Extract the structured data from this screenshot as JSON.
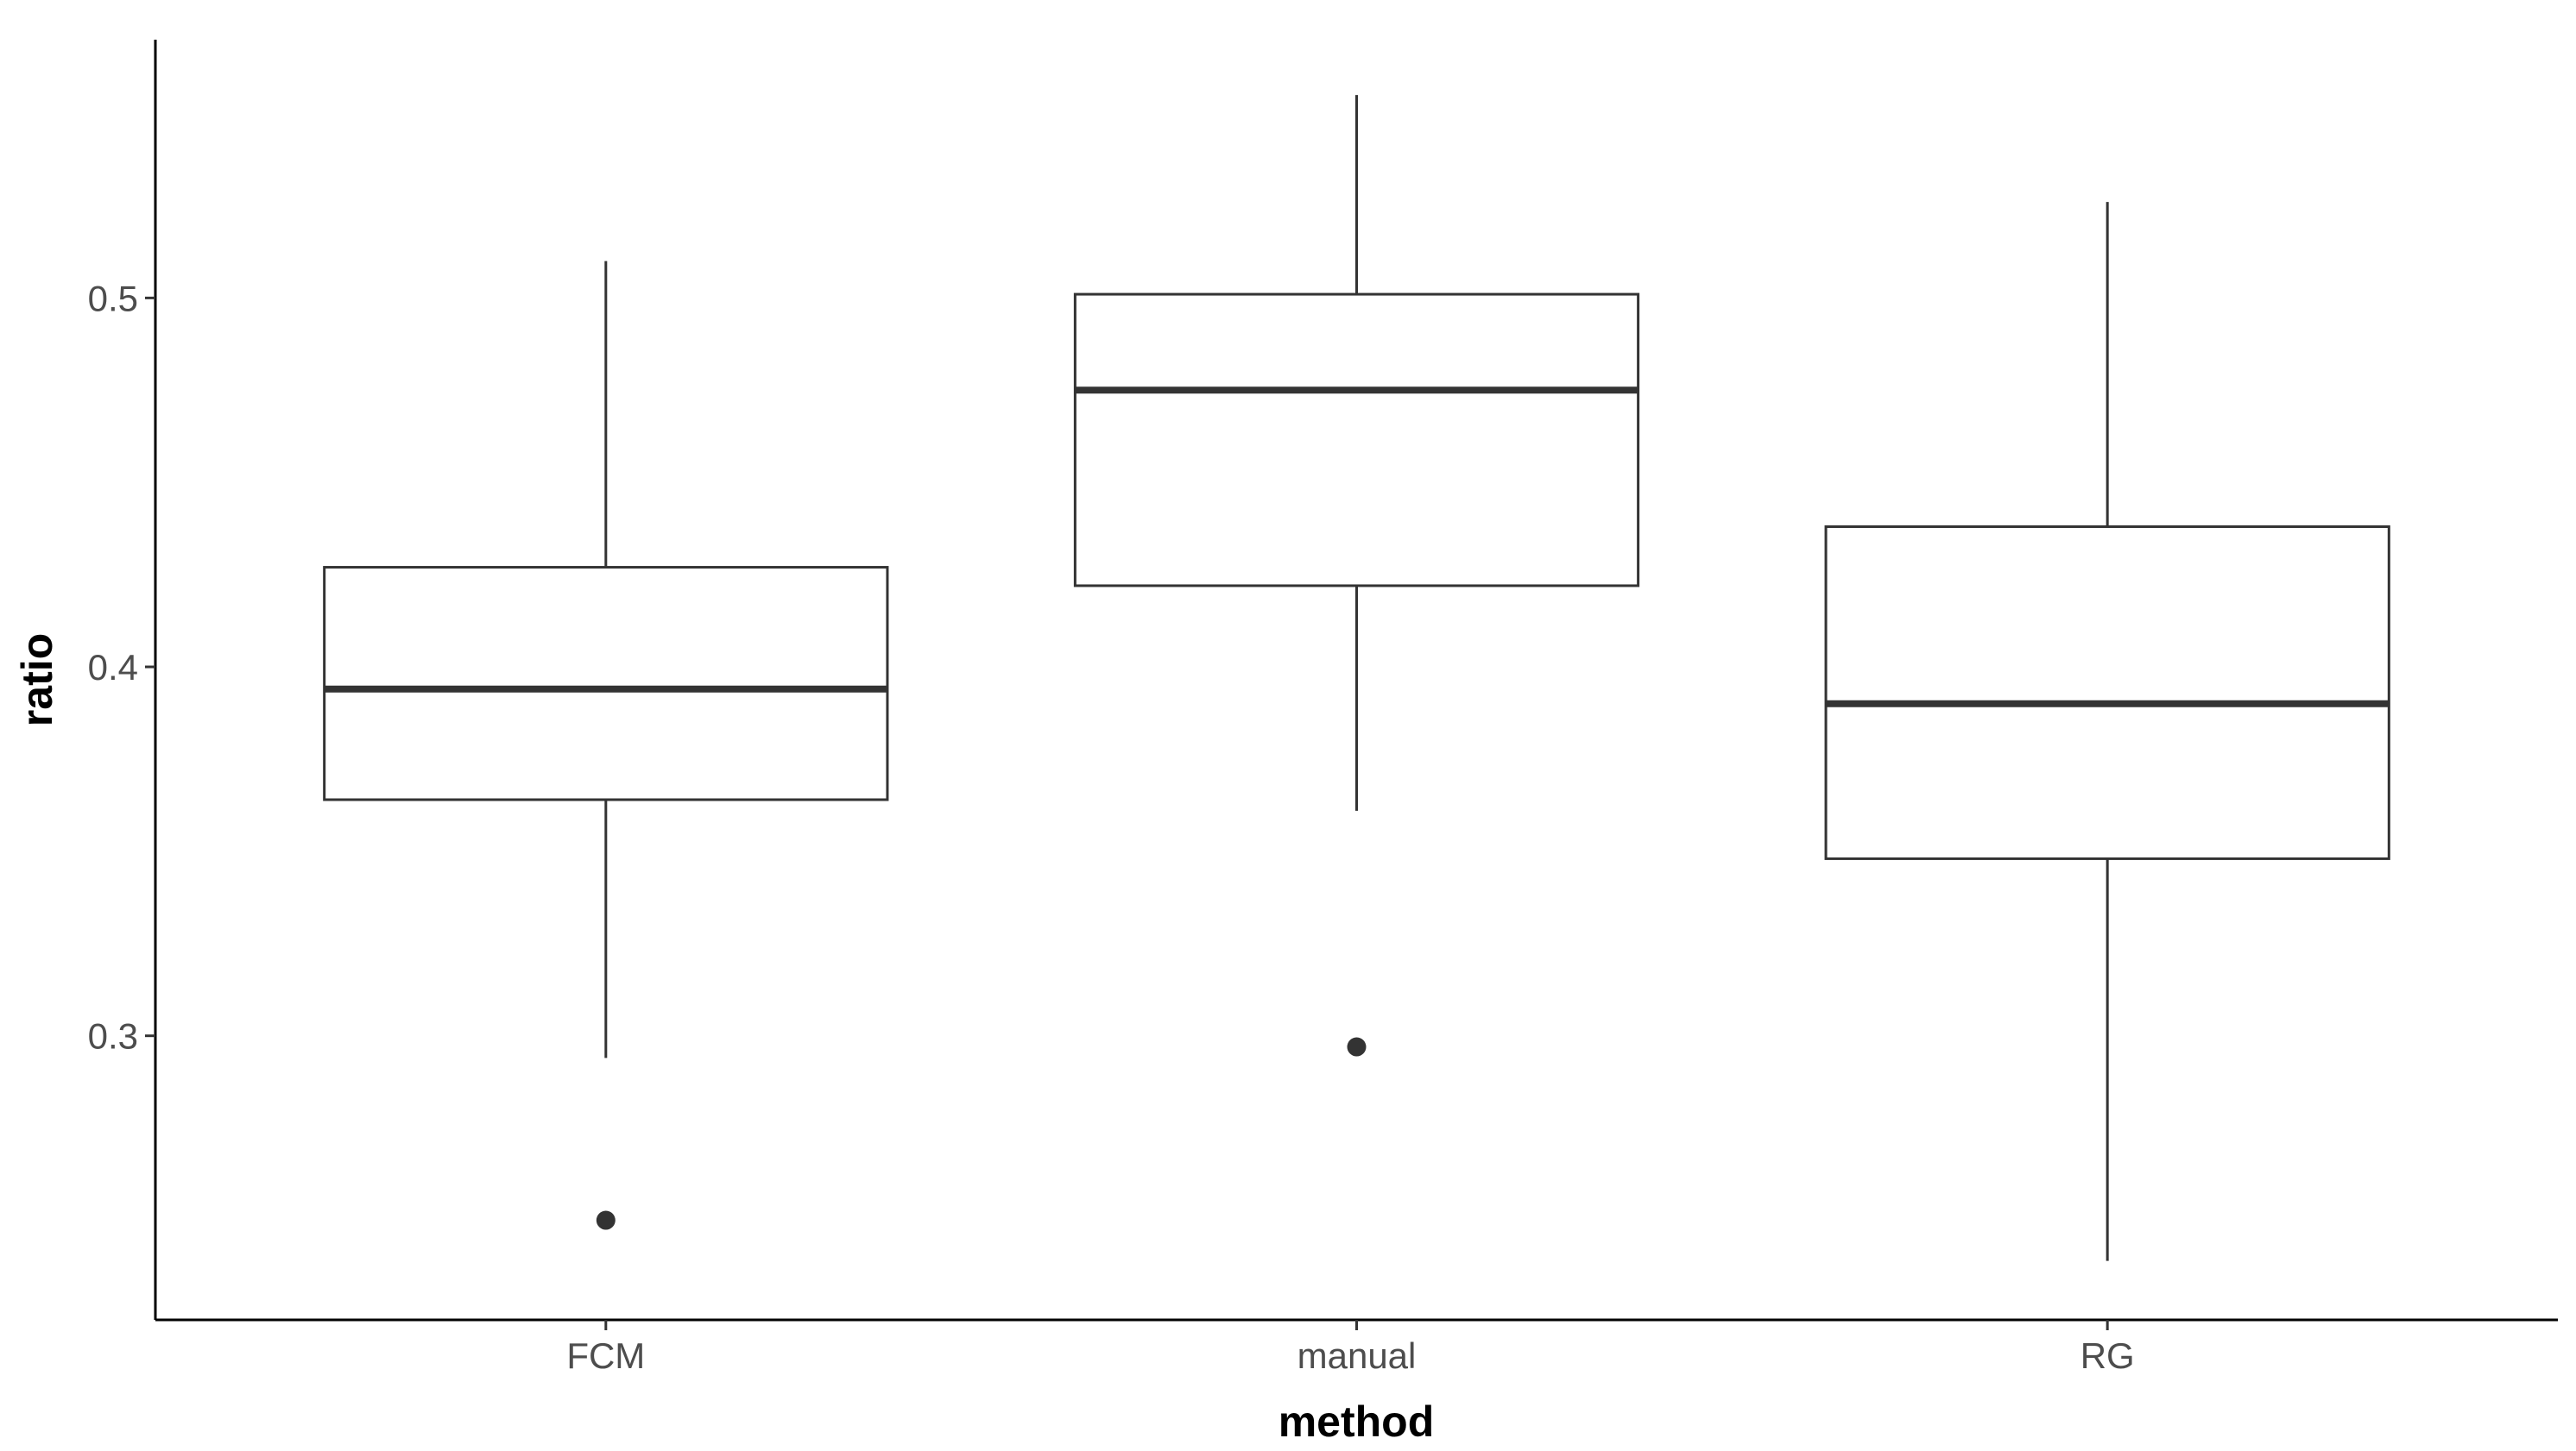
{
  "chart_data": {
    "type": "boxplot",
    "title": "",
    "xlabel": "method",
    "ylabel": "ratio",
    "categories": [
      "FCM",
      "manual",
      "RG"
    ],
    "boxes": [
      {
        "category": "FCM",
        "whisker_low": 0.294,
        "q1": 0.364,
        "median": 0.394,
        "q3": 0.427,
        "whisker_high": 0.51,
        "outliers": [
          0.25
        ]
      },
      {
        "category": "manual",
        "whisker_low": 0.361,
        "q1": 0.422,
        "median": 0.475,
        "q3": 0.501,
        "whisker_high": 0.555,
        "outliers": [
          0.297
        ]
      },
      {
        "category": "RG",
        "whisker_low": 0.239,
        "q1": 0.348,
        "median": 0.39,
        "q3": 0.438,
        "whisker_high": 0.526,
        "outliers": []
      }
    ],
    "ylim": [
      0.223,
      0.57
    ],
    "yticks": [
      0.3,
      0.4,
      0.5
    ],
    "ytick_labels": [
      "0.3",
      "0.4",
      "0.5"
    ],
    "grid": false,
    "legend": "none"
  }
}
